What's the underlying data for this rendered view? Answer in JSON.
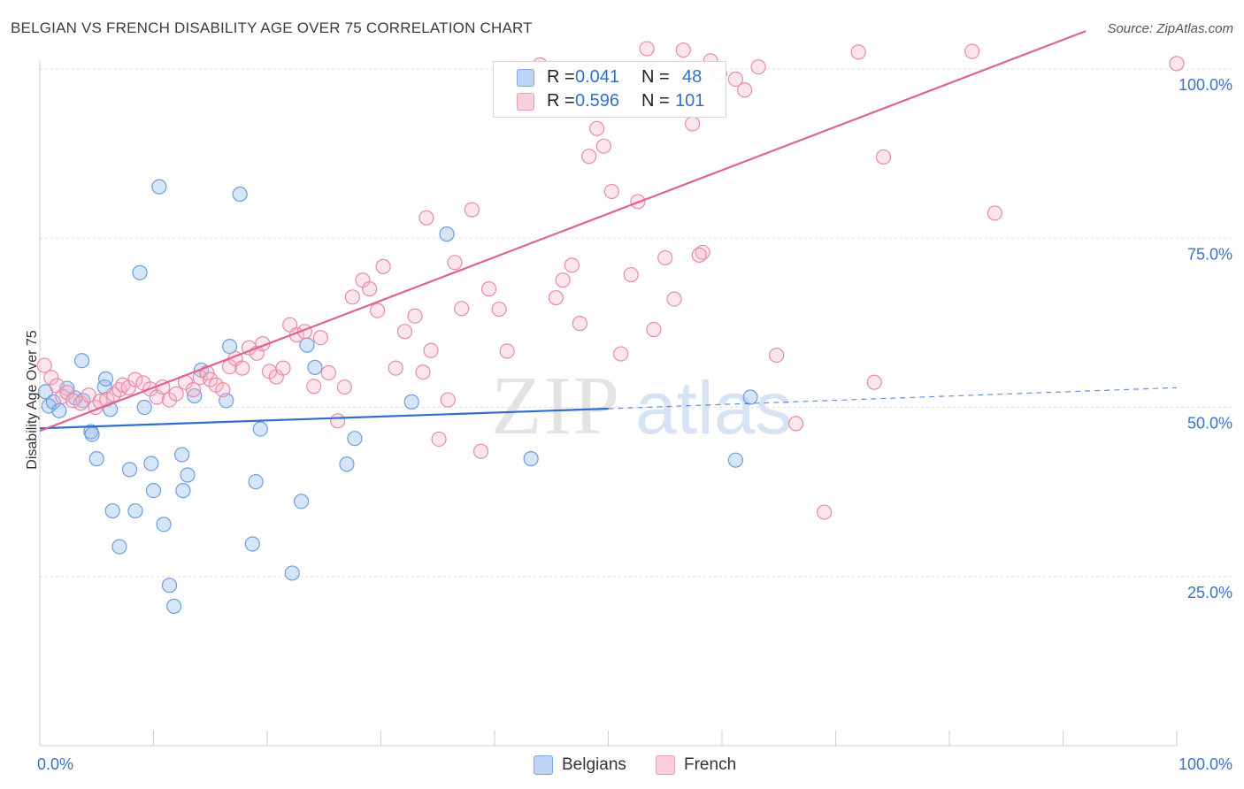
{
  "header": {
    "title": "BELGIAN VS FRENCH DISABILITY AGE OVER 75 CORRELATION CHART",
    "source": "Source: ZipAtlas.com"
  },
  "watermark": {
    "zip": "ZIP",
    "atlas": "atlas"
  },
  "stats": {
    "r_label": "R =",
    "n_label": "N =",
    "rows": [
      {
        "series": "Belgians",
        "r": "0.041",
        "n": "48",
        "color": "#a9c8f3"
      },
      {
        "series": "French",
        "r": "0.596",
        "n": "101",
        "color": "#f7bfd1"
      }
    ]
  },
  "legend": [
    {
      "label": "Belgians",
      "color": "#a9c8f3"
    },
    {
      "label": "French",
      "color": "#f7bfd1"
    }
  ],
  "chart_data": {
    "type": "scatter",
    "title": "BELGIAN VS FRENCH DISABILITY AGE OVER 75 CORRELATION CHART",
    "xlabel": "",
    "ylabel": "Disability Age Over 75",
    "xlim": [
      0,
      100
    ],
    "ylim": [
      0,
      100
    ],
    "x_tick_labels": [
      {
        "value": 0,
        "label": "0.0%"
      },
      {
        "value": 100,
        "label": "100.0%"
      }
    ],
    "y_tick_labels": [
      {
        "value": 25,
        "label": "25.0%"
      },
      {
        "value": 50,
        "label": "50.0%"
      },
      {
        "value": 75,
        "label": "75.0%"
      },
      {
        "value": 100,
        "label": "100.0%"
      }
    ],
    "grid": true,
    "series": [
      {
        "name": "Belgians",
        "color": "#6a9fe0",
        "fill": "rgba(140,180,235,0.35)",
        "trend": {
          "x0": 0,
          "y0": 46.9,
          "x1": 50,
          "y1": 49.8,
          "dash_to_x": 100,
          "dash_to_y": 52.9,
          "color": "#2f6fcd"
        },
        "points": [
          [
            0.5,
            52.3
          ],
          [
            0.8,
            50.2
          ],
          [
            1.2,
            50.8
          ],
          [
            1.7,
            49.5
          ],
          [
            2.4,
            52.8
          ],
          [
            3.1,
            51.4
          ],
          [
            3.8,
            51.0
          ],
          [
            3.7,
            56.9
          ],
          [
            4.5,
            46.4
          ],
          [
            4.6,
            46.0
          ],
          [
            5.0,
            42.4
          ],
          [
            5.7,
            53.0
          ],
          [
            5.8,
            54.2
          ],
          [
            6.2,
            49.7
          ],
          [
            6.4,
            34.7
          ],
          [
            7.0,
            29.4
          ],
          [
            7.9,
            40.8
          ],
          [
            8.4,
            34.7
          ],
          [
            8.8,
            69.9
          ],
          [
            9.2,
            50.0
          ],
          [
            9.8,
            41.7
          ],
          [
            10.0,
            37.7
          ],
          [
            10.5,
            82.6
          ],
          [
            10.9,
            32.7
          ],
          [
            11.4,
            23.7
          ],
          [
            11.8,
            20.6
          ],
          [
            12.5,
            43.0
          ],
          [
            12.6,
            37.7
          ],
          [
            13.0,
            40.0
          ],
          [
            13.6,
            51.7
          ],
          [
            14.2,
            55.5
          ],
          [
            16.4,
            51.0
          ],
          [
            16.7,
            59.0
          ],
          [
            17.6,
            81.5
          ],
          [
            18.7,
            29.8
          ],
          [
            19.0,
            39.0
          ],
          [
            19.4,
            46.8
          ],
          [
            22.2,
            25.5
          ],
          [
            23.0,
            36.1
          ],
          [
            23.5,
            59.2
          ],
          [
            24.2,
            55.9
          ],
          [
            27.0,
            41.6
          ],
          [
            27.7,
            45.4
          ],
          [
            32.7,
            50.8
          ],
          [
            35.8,
            75.6
          ],
          [
            43.2,
            42.4
          ],
          [
            61.2,
            42.2
          ],
          [
            62.5,
            51.5
          ]
        ]
      },
      {
        "name": "French",
        "color": "#e98aa9",
        "fill": "rgba(245,180,200,0.35)",
        "trend": {
          "x0": 0,
          "y0": 46.5,
          "x1": 92,
          "y1": 105.6,
          "color": "#e0628f"
        },
        "points": [
          [
            0.4,
            56.2
          ],
          [
            1.0,
            54.4
          ],
          [
            1.5,
            53.2
          ],
          [
            2.0,
            51.6
          ],
          [
            2.4,
            52.2
          ],
          [
            2.9,
            51.0
          ],
          [
            3.6,
            50.6
          ],
          [
            4.3,
            51.8
          ],
          [
            4.9,
            50.0
          ],
          [
            5.3,
            50.9
          ],
          [
            5.9,
            51.2
          ],
          [
            6.5,
            51.9
          ],
          [
            7.0,
            52.6
          ],
          [
            7.3,
            53.3
          ],
          [
            7.8,
            52.9
          ],
          [
            8.4,
            54.1
          ],
          [
            9.1,
            53.6
          ],
          [
            9.7,
            52.7
          ],
          [
            10.3,
            51.5
          ],
          [
            10.8,
            53.0
          ],
          [
            11.4,
            51.1
          ],
          [
            12.0,
            52.0
          ],
          [
            12.8,
            53.7
          ],
          [
            13.5,
            52.6
          ],
          [
            14.1,
            54.4
          ],
          [
            14.7,
            55.1
          ],
          [
            15.0,
            54.1
          ],
          [
            15.5,
            53.3
          ],
          [
            16.1,
            52.6
          ],
          [
            16.7,
            56.0
          ],
          [
            17.2,
            57.2
          ],
          [
            17.8,
            55.8
          ],
          [
            18.4,
            58.8
          ],
          [
            19.1,
            58.0
          ],
          [
            19.6,
            59.4
          ],
          [
            20.2,
            55.3
          ],
          [
            20.8,
            54.5
          ],
          [
            21.4,
            55.8
          ],
          [
            22.0,
            62.2
          ],
          [
            22.6,
            60.7
          ],
          [
            23.3,
            61.2
          ],
          [
            24.1,
            53.1
          ],
          [
            24.7,
            60.3
          ],
          [
            25.4,
            55.1
          ],
          [
            26.2,
            48.0
          ],
          [
            26.8,
            53.0
          ],
          [
            27.5,
            66.3
          ],
          [
            28.4,
            68.8
          ],
          [
            29.0,
            67.5
          ],
          [
            29.7,
            64.3
          ],
          [
            30.2,
            70.8
          ],
          [
            31.3,
            55.8
          ],
          [
            32.1,
            61.2
          ],
          [
            33.0,
            63.5
          ],
          [
            33.7,
            55.2
          ],
          [
            34.4,
            58.4
          ],
          [
            35.1,
            45.3
          ],
          [
            35.9,
            51.1
          ],
          [
            36.5,
            71.4
          ],
          [
            37.1,
            64.6
          ],
          [
            38.0,
            79.2
          ],
          [
            38.8,
            43.5
          ],
          [
            39.5,
            67.5
          ],
          [
            40.4,
            64.5
          ],
          [
            41.1,
            58.3
          ],
          [
            42.6,
            94.4
          ],
          [
            44.0,
            100.6
          ],
          [
            45.4,
            66.2
          ],
          [
            46.0,
            68.8
          ],
          [
            46.8,
            71.0
          ],
          [
            47.5,
            62.4
          ],
          [
            48.3,
            87.1
          ],
          [
            49.0,
            91.2
          ],
          [
            49.6,
            88.6
          ],
          [
            50.3,
            81.9
          ],
          [
            51.1,
            57.9
          ],
          [
            52.0,
            69.6
          ],
          [
            52.6,
            80.4
          ],
          [
            53.4,
            103.0
          ],
          [
            54.0,
            61.5
          ],
          [
            55.0,
            72.1
          ],
          [
            55.8,
            66.0
          ],
          [
            56.6,
            102.8
          ],
          [
            57.4,
            91.9
          ],
          [
            58.3,
            72.9
          ],
          [
            59.0,
            101.2
          ],
          [
            59.8,
            99.3
          ],
          [
            61.2,
            98.5
          ],
          [
            62.0,
            96.9
          ],
          [
            63.2,
            100.3
          ],
          [
            64.8,
            57.7
          ],
          [
            66.5,
            47.6
          ],
          [
            69.0,
            34.5
          ],
          [
            72.0,
            102.5
          ],
          [
            73.4,
            53.7
          ],
          [
            74.2,
            87.0
          ],
          [
            82.0,
            102.6
          ],
          [
            84.0,
            78.7
          ],
          [
            100.0,
            100.8
          ],
          [
            58.0,
            72.5
          ],
          [
            34.0,
            78.0
          ]
        ]
      }
    ]
  }
}
